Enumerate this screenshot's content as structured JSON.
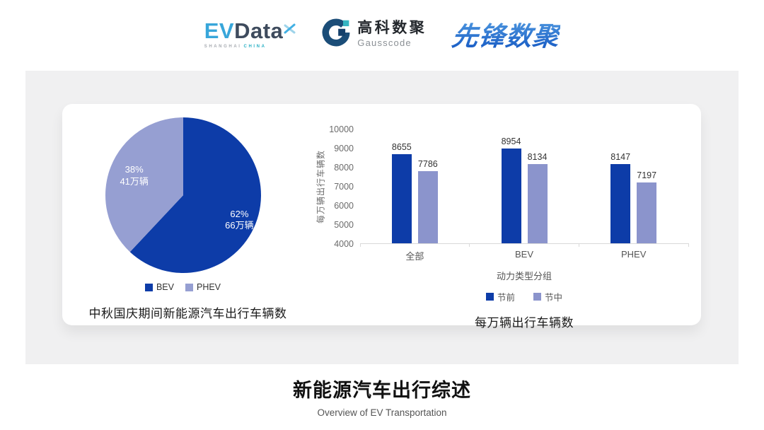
{
  "header": {
    "evdata": {
      "ev": "EV",
      "data": "Data",
      "sub1": "SHANGHAI",
      "sub2": "CHINA"
    },
    "gausscode": {
      "cn": "高科数聚",
      "en": "Gausscode"
    },
    "pioneer": {
      "text": "先锋数聚"
    }
  },
  "colors": {
    "dark_blue": "#0d3ca8",
    "pie_light_blue": "#969fd2",
    "bar_light_blue": "#8b94cc",
    "panel_gray": "#f0f0f1",
    "axis_gray": "#d9d9d9"
  },
  "chart_data": [
    {
      "type": "pie",
      "title": "中秋国庆期间新能源汽车出行车辆数",
      "labels": [
        "BEV",
        "PHEV"
      ],
      "values": [
        62,
        38
      ],
      "value_labels": [
        {
          "pct": "62%",
          "amount": "66万辆"
        },
        {
          "pct": "38%",
          "amount": "41万辆"
        }
      ],
      "colors": [
        "#0d3ca8",
        "#969fd2"
      ],
      "legend": [
        "BEV",
        "PHEV"
      ],
      "legend_position": "bottom",
      "start_angle": "top",
      "direction": "clockwise"
    },
    {
      "type": "bar",
      "title": "每万辆出行车辆数",
      "categories": [
        "全部",
        "BEV",
        "PHEV"
      ],
      "series": [
        {
          "name": "节前",
          "values": [
            8655,
            8954,
            8147
          ],
          "color": "#0d3ca8"
        },
        {
          "name": "节中",
          "values": [
            7786,
            8134,
            7197
          ],
          "color": "#8b94cc"
        }
      ],
      "xlabel": "动力类型分组",
      "ylabel": "每万辆出行车辆数",
      "ylim": [
        4000,
        10000
      ],
      "ytick_step": 1000,
      "yticks": [
        4000,
        5000,
        6000,
        7000,
        8000,
        9000,
        10000
      ],
      "grid": false,
      "legend_position": "bottom"
    }
  ],
  "footer": {
    "title": "新能源汽车出行综述",
    "subtitle": "Overview of EV Transportation"
  }
}
